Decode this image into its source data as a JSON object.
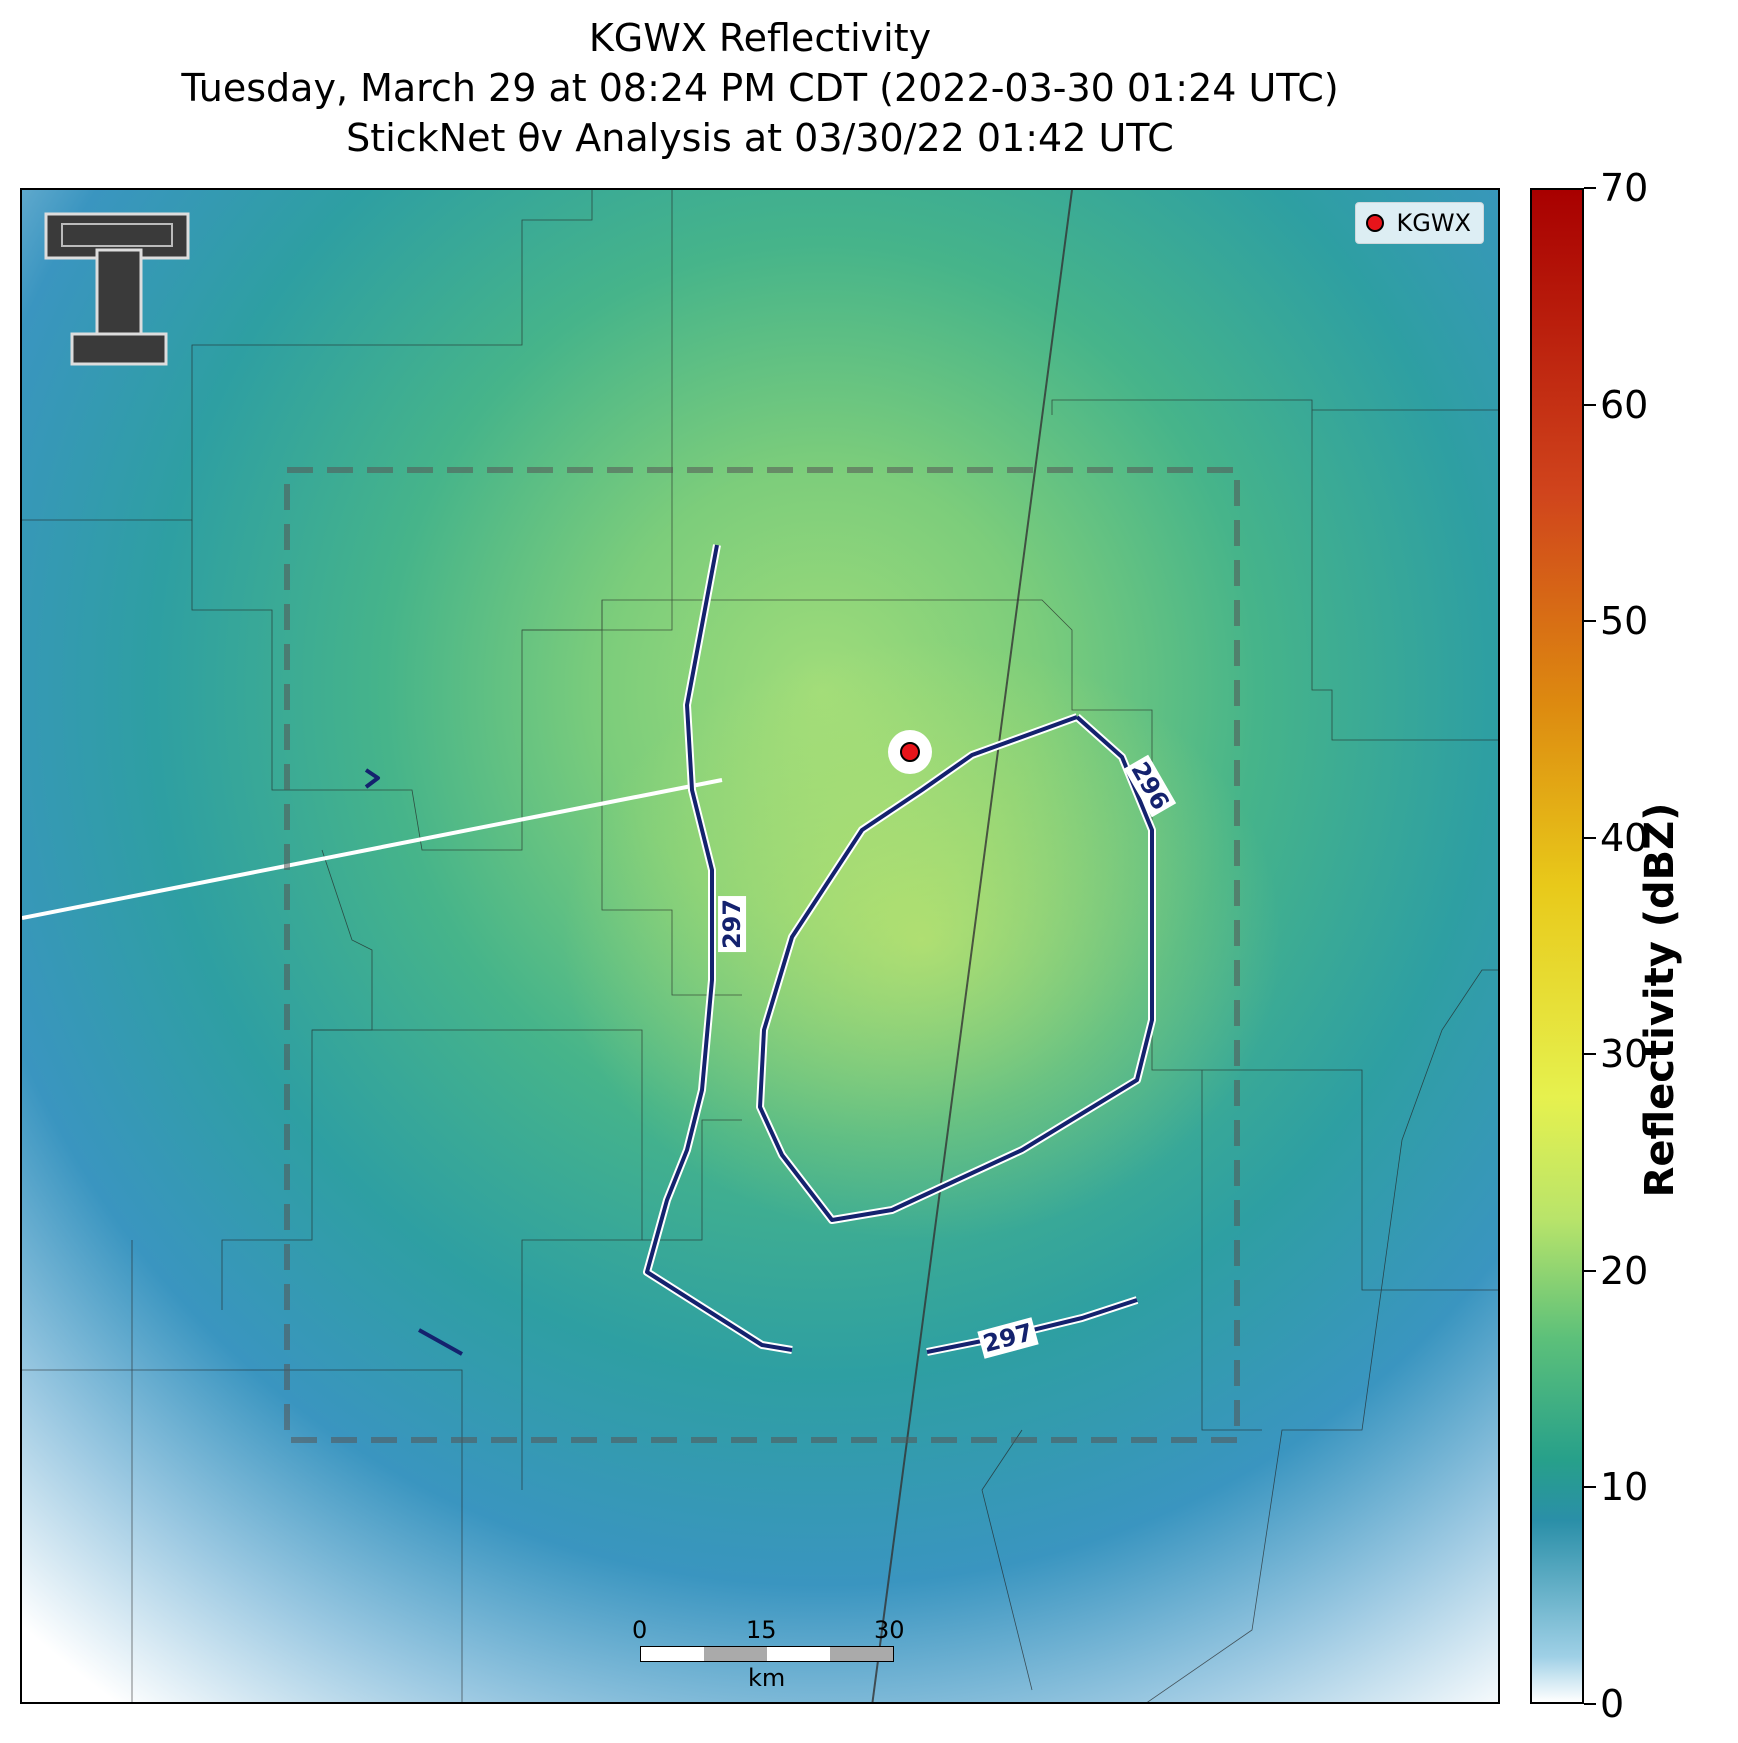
{
  "title": {
    "line1": "KGWX Reflectivity",
    "line2": "Tuesday, March 29 at 08:24 PM CDT (2022-03-30 01:24 UTC)",
    "line3": "StickNet θv Analysis at 03/30/22 01:42 UTC"
  },
  "legend": {
    "label": "KGWX",
    "marker_color": "#e8141a"
  },
  "colorbar": {
    "label": "Reflectivity (dBZ)",
    "ticks": [
      "0",
      "10",
      "20",
      "30",
      "40",
      "50",
      "60",
      "70"
    ],
    "range": [
      0,
      70
    ]
  },
  "contours": [
    {
      "label": "297",
      "color": "#14226e"
    },
    {
      "label": "296",
      "color": "#14226e"
    },
    {
      "label": "297",
      "color": "#14226e"
    }
  ],
  "scalebar": {
    "ticks": [
      "0",
      "15",
      "30"
    ],
    "unit": "km"
  },
  "logo": {
    "name": "texas-tech-double-t-logo",
    "text": "T"
  }
}
